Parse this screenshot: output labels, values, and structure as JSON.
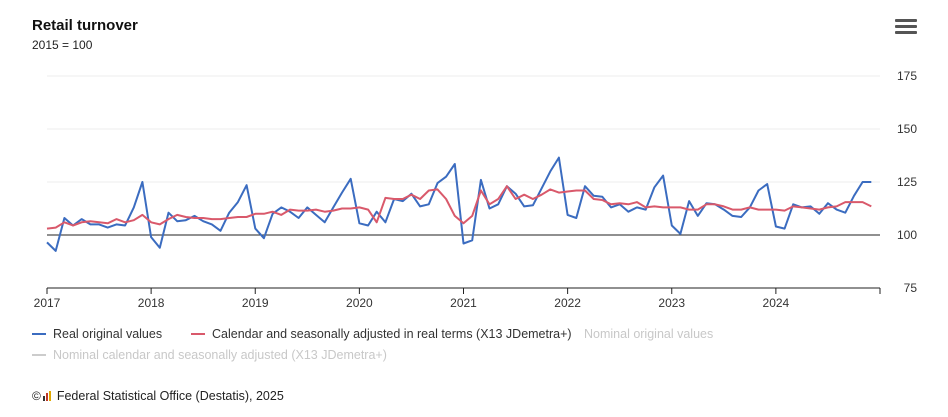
{
  "header": {
    "title": "Retail turnover",
    "subtitle": "2015 = 100",
    "menu_icon": "hamburger-menu-icon"
  },
  "legend": [
    {
      "label": "Real original values",
      "color": "#3b6cc0",
      "visible": true
    },
    {
      "label": "Calendar and seasonally adjusted in real terms (X13 JDemetra+)",
      "color": "#d9596b",
      "visible": true
    },
    {
      "label": "Nominal original values",
      "color": "#cccccc",
      "visible": false
    },
    {
      "label": "Nominal calendar and seasonally adjusted (X13 JDemetra+)",
      "color": "#cccccc",
      "visible": false
    }
  ],
  "footer": {
    "copyright": "©",
    "logo_icon": "destatis-logo-icon",
    "source": "Federal Statistical Office (Destatis), 2025"
  },
  "chart_data": {
    "type": "line",
    "x_start": "2017-01",
    "x_end": "2024-12",
    "x_ticks": [
      "2017",
      "2018",
      "2019",
      "2020",
      "2021",
      "2022",
      "2023",
      "2024"
    ],
    "y_ticks": [
      75,
      100,
      125,
      150,
      175
    ],
    "ylim": [
      75,
      175
    ],
    "reference_line": 100,
    "y_axis_side": "right",
    "grid": "horizontal",
    "series": [
      {
        "name": "Real original values",
        "color": "#3b6cc0",
        "values": [
          96.5,
          92.5,
          108,
          104.5,
          107.5,
          105,
          105,
          103.5,
          105,
          104.5,
          113,
          125,
          99,
          94,
          110.5,
          106.5,
          107,
          109,
          106.5,
          105,
          102,
          110.5,
          115.5,
          123.5,
          103,
          98.5,
          110,
          113,
          111,
          108,
          113,
          109.5,
          106,
          113,
          120,
          126.5,
          105.5,
          104.5,
          111,
          106,
          117,
          116,
          119.5,
          113.5,
          114.5,
          124.5,
          127.5,
          133.5,
          96,
          97.5,
          126,
          112.5,
          114.5,
          123,
          119.5,
          113.5,
          114,
          122,
          130,
          136.5,
          109.5,
          108,
          123,
          118.5,
          118,
          113,
          114.5,
          111,
          113,
          112,
          122.5,
          128,
          104.5,
          100.5,
          116,
          109,
          115,
          114.5,
          112,
          109,
          108.5,
          113,
          121,
          124,
          104,
          103,
          114.5,
          113,
          113.5,
          110,
          115,
          112,
          110.5,
          118.5,
          125,
          125
        ]
      },
      {
        "name": "Calendar and seasonally adjusted in real terms (X13 JDemetra+)",
        "color": "#d9596b",
        "values": [
          103,
          103.5,
          106,
          104.5,
          106,
          106.5,
          106,
          105.5,
          107.5,
          106,
          107,
          109.5,
          106,
          105,
          107.5,
          109.5,
          108.5,
          108,
          108,
          107.5,
          107.5,
          108,
          108.5,
          108.5,
          110,
          110,
          111,
          109.5,
          112,
          111.5,
          111.5,
          112,
          111,
          111.5,
          112.5,
          112.5,
          113,
          112,
          106,
          117.5,
          117,
          117,
          119,
          117,
          121,
          121.5,
          117,
          109,
          105.5,
          109,
          121,
          114.5,
          117,
          123,
          117,
          119,
          117,
          119,
          121.5,
          120,
          120.5,
          121,
          121,
          117,
          116.5,
          114.5,
          115,
          114.5,
          115.5,
          113,
          113.5,
          113,
          113,
          113,
          112,
          112,
          114.5,
          114.5,
          113.5,
          112,
          112,
          113,
          112,
          112,
          112,
          111.5,
          113.5,
          113,
          112.5,
          112,
          113,
          113.5,
          115.5,
          115.5,
          115.5,
          113.5
        ]
      }
    ]
  }
}
